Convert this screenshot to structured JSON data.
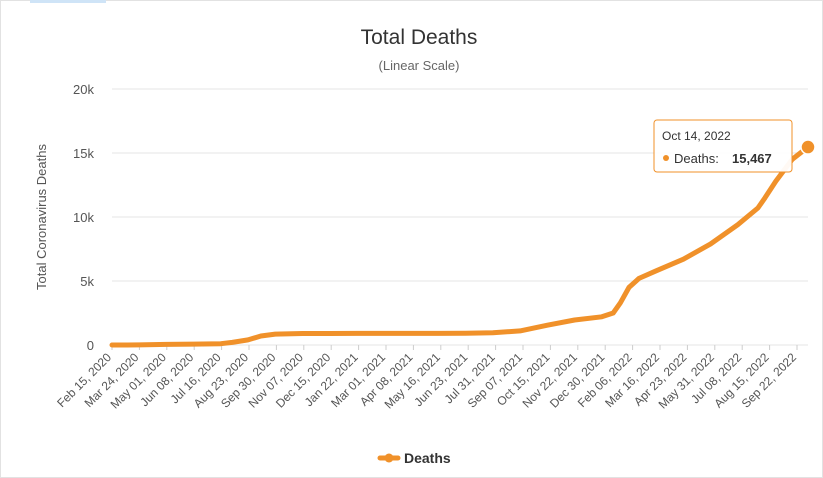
{
  "chart_data": {
    "type": "line",
    "title": "Total Deaths",
    "subtitle": "(Linear Scale)",
    "ylabel": "Total Coronavirus Deaths",
    "xlabel": "",
    "ylim": [
      0,
      20000
    ],
    "y_ticks": [
      {
        "value": 0,
        "label": "0"
      },
      {
        "value": 5000,
        "label": "5k"
      },
      {
        "value": 10000,
        "label": "10k"
      },
      {
        "value": 15000,
        "label": "15k"
      },
      {
        "value": 20000,
        "label": "20k"
      }
    ],
    "x_range": [
      "2020-02-15",
      "2022-10-14"
    ],
    "x_tick_labels": [
      "Feb 15, 2020",
      "Mar 24, 2020",
      "May 01, 2020",
      "Jun 08, 2020",
      "Jul 16, 2020",
      "Aug 23, 2020",
      "Sep 30, 2020",
      "Nov 07, 2020",
      "Dec 15, 2020",
      "Jan 22, 2021",
      "Mar 01, 2021",
      "Apr 08, 2021",
      "May 16, 2021",
      "Jun 23, 2021",
      "Jul 31, 2021",
      "Sep 07, 2021",
      "Oct 15, 2021",
      "Nov 22, 2021",
      "Dec 30, 2021",
      "Feb 06, 2022",
      "Mar 16, 2022",
      "Apr 23, 2022",
      "May 31, 2022",
      "Jul 08, 2022",
      "Aug 15, 2022",
      "Sep 22, 2022"
    ],
    "grid": true,
    "legend_position": "bottom-center",
    "series": [
      {
        "name": "Deaths",
        "color": "#f0912a",
        "points": [
          [
            "2020-02-15",
            0
          ],
          [
            "2020-03-24",
            10
          ],
          [
            "2020-05-01",
            50
          ],
          [
            "2020-06-08",
            70
          ],
          [
            "2020-07-16",
            100
          ],
          [
            "2020-08-01",
            200
          ],
          [
            "2020-08-23",
            400
          ],
          [
            "2020-09-10",
            700
          ],
          [
            "2020-09-30",
            850
          ],
          [
            "2020-11-07",
            900
          ],
          [
            "2020-12-15",
            900
          ],
          [
            "2021-01-22",
            910
          ],
          [
            "2021-03-01",
            910
          ],
          [
            "2021-04-08",
            910
          ],
          [
            "2021-05-16",
            910
          ],
          [
            "2021-06-23",
            920
          ],
          [
            "2021-07-31",
            950
          ],
          [
            "2021-09-07",
            1100
          ],
          [
            "2021-10-15",
            1550
          ],
          [
            "2021-11-22",
            1950
          ],
          [
            "2021-12-30",
            2200
          ],
          [
            "2022-01-15",
            2500
          ],
          [
            "2022-01-25",
            3300
          ],
          [
            "2022-02-06",
            4500
          ],
          [
            "2022-02-20",
            5200
          ],
          [
            "2022-03-16",
            5800
          ],
          [
            "2022-04-23",
            6700
          ],
          [
            "2022-05-31",
            7900
          ],
          [
            "2022-07-08",
            9400
          ],
          [
            "2022-08-05",
            10700
          ],
          [
            "2022-08-15",
            11500
          ],
          [
            "2022-08-30",
            12800
          ],
          [
            "2022-09-22",
            14500
          ],
          [
            "2022-10-14",
            15467
          ]
        ]
      }
    ],
    "tooltip": {
      "date": "Oct 14, 2022",
      "label": "Deaths:",
      "value": "15,467",
      "point_x": "2022-10-14",
      "point_y": 15467
    }
  }
}
